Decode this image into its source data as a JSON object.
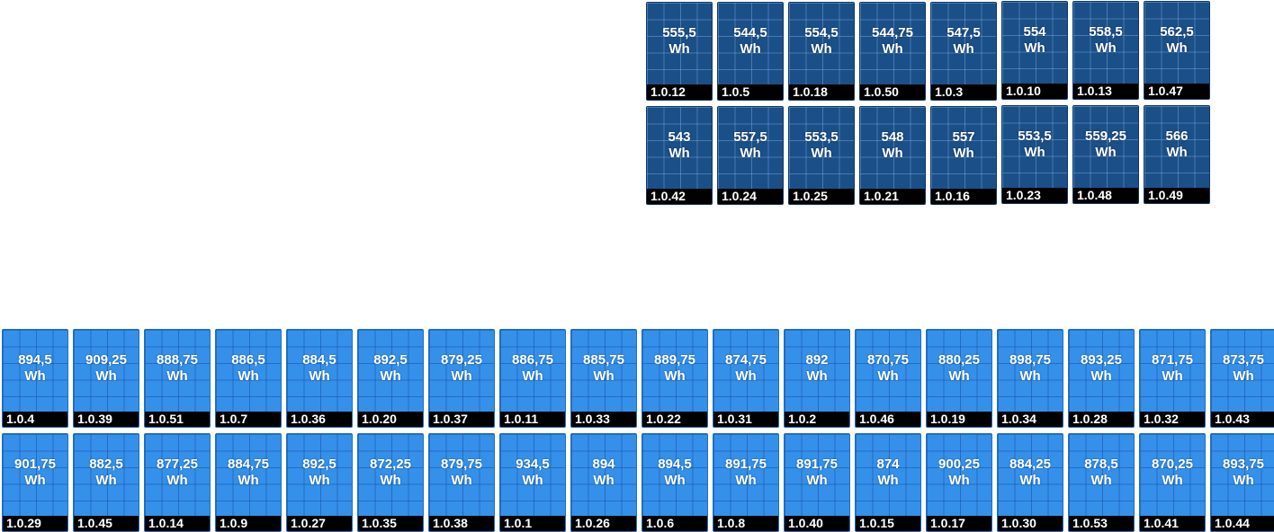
{
  "colors": {
    "upper_panel": "#1b4f88",
    "lower_panel": "#3590ea",
    "label_bar": "#000000",
    "text": "#ffffff"
  },
  "upper_array": {
    "rows": [
      [
        {
          "energy": "555,5",
          "unit": "Wh",
          "addr": "1.0.12"
        },
        {
          "energy": "544,5",
          "unit": "Wh",
          "addr": "1.0.5"
        },
        {
          "energy": "554,5",
          "unit": "Wh",
          "addr": "1.0.18"
        },
        {
          "energy": "544,75",
          "unit": "Wh",
          "addr": "1.0.50"
        },
        {
          "energy": "547,5",
          "unit": "Wh",
          "addr": "1.0.3"
        },
        {
          "energy": "554",
          "unit": "Wh",
          "addr": "1.0.10"
        },
        {
          "energy": "558,5",
          "unit": "Wh",
          "addr": "1.0.13"
        },
        {
          "energy": "562,5",
          "unit": "Wh",
          "addr": "1.0.47"
        }
      ],
      [
        {
          "energy": "543",
          "unit": "Wh",
          "addr": "1.0.42"
        },
        {
          "energy": "557,5",
          "unit": "Wh",
          "addr": "1.0.24"
        },
        {
          "energy": "553,5",
          "unit": "Wh",
          "addr": "1.0.25"
        },
        {
          "energy": "548",
          "unit": "Wh",
          "addr": "1.0.21"
        },
        {
          "energy": "557",
          "unit": "Wh",
          "addr": "1.0.16"
        },
        {
          "energy": "553,5",
          "unit": "Wh",
          "addr": "1.0.23"
        },
        {
          "energy": "559,25",
          "unit": "Wh",
          "addr": "1.0.48"
        },
        {
          "energy": "566",
          "unit": "Wh",
          "addr": "1.0.49"
        }
      ]
    ]
  },
  "lower_array": {
    "rows": [
      [
        {
          "energy": "894,5",
          "unit": "Wh",
          "addr": "1.0.4"
        },
        {
          "energy": "909,25",
          "unit": "Wh",
          "addr": "1.0.39"
        },
        {
          "energy": "888,75",
          "unit": "Wh",
          "addr": "1.0.51"
        },
        {
          "energy": "886,5",
          "unit": "Wh",
          "addr": "1.0.7"
        },
        {
          "energy": "884,5",
          "unit": "Wh",
          "addr": "1.0.36"
        },
        {
          "energy": "892,5",
          "unit": "Wh",
          "addr": "1.0.20"
        },
        {
          "energy": "879,25",
          "unit": "Wh",
          "addr": "1.0.37"
        },
        {
          "energy": "886,75",
          "unit": "Wh",
          "addr": "1.0.11"
        },
        {
          "energy": "885,75",
          "unit": "Wh",
          "addr": "1.0.33"
        },
        {
          "energy": "889,75",
          "unit": "Wh",
          "addr": "1.0.22"
        },
        {
          "energy": "874,75",
          "unit": "Wh",
          "addr": "1.0.31"
        },
        {
          "energy": "892",
          "unit": "Wh",
          "addr": "1.0.2"
        },
        {
          "energy": "870,75",
          "unit": "Wh",
          "addr": "1.0.46"
        },
        {
          "energy": "880,25",
          "unit": "Wh",
          "addr": "1.0.19"
        },
        {
          "energy": "898,75",
          "unit": "Wh",
          "addr": "1.0.34"
        },
        {
          "energy": "893,25",
          "unit": "Wh",
          "addr": "1.0.28"
        },
        {
          "energy": "871,75",
          "unit": "Wh",
          "addr": "1.0.32"
        },
        {
          "energy": "873,75",
          "unit": "Wh",
          "addr": "1.0.43"
        }
      ],
      [
        {
          "energy": "901,75",
          "unit": "Wh",
          "addr": "1.0.29"
        },
        {
          "energy": "882,5",
          "unit": "Wh",
          "addr": "1.0.45"
        },
        {
          "energy": "877,25",
          "unit": "Wh",
          "addr": "1.0.14"
        },
        {
          "energy": "884,75",
          "unit": "Wh",
          "addr": "1.0.9"
        },
        {
          "energy": "892,5",
          "unit": "Wh",
          "addr": "1.0.27"
        },
        {
          "energy": "872,25",
          "unit": "Wh",
          "addr": "1.0.35"
        },
        {
          "energy": "879,75",
          "unit": "Wh",
          "addr": "1.0.38"
        },
        {
          "energy": "934,5",
          "unit": "Wh",
          "addr": "1.0.1"
        },
        {
          "energy": "894",
          "unit": "Wh",
          "addr": "1.0.26"
        },
        {
          "energy": "894,5",
          "unit": "Wh",
          "addr": "1.0.6"
        },
        {
          "energy": "891,75",
          "unit": "Wh",
          "addr": "1.0.8"
        },
        {
          "energy": "891,75",
          "unit": "Wh",
          "addr": "1.0.40"
        },
        {
          "energy": "874",
          "unit": "Wh",
          "addr": "1.0.15"
        },
        {
          "energy": "900,25",
          "unit": "Wh",
          "addr": "1.0.17"
        },
        {
          "energy": "884,25",
          "unit": "Wh",
          "addr": "1.0.30"
        },
        {
          "energy": "878,5",
          "unit": "Wh",
          "addr": "1.0.53"
        },
        {
          "energy": "870,25",
          "unit": "Wh",
          "addr": "1.0.41"
        },
        {
          "energy": "893,75",
          "unit": "Wh",
          "addr": "1.0.44"
        }
      ]
    ]
  }
}
